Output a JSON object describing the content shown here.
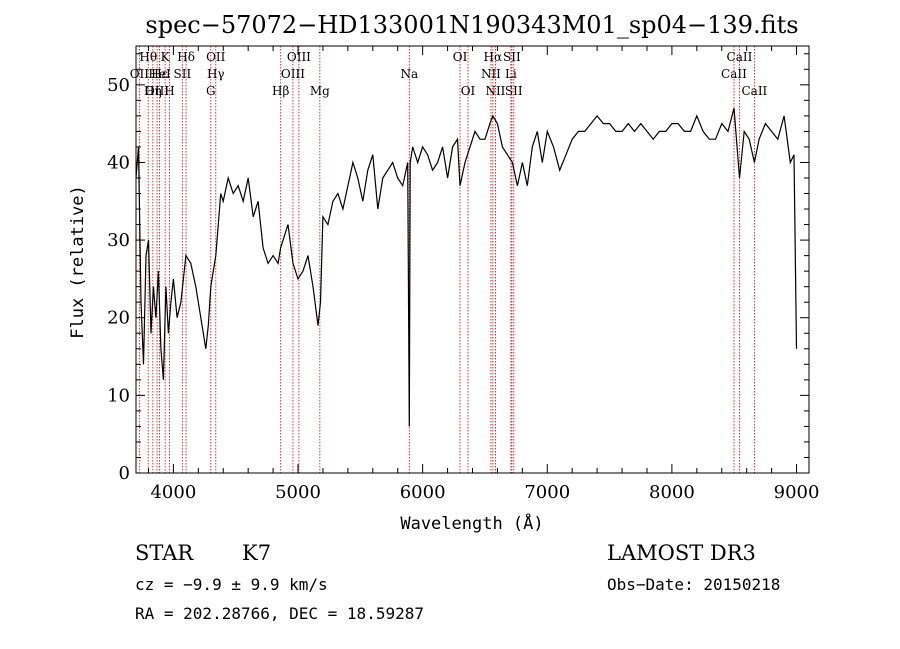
{
  "chart_data": {
    "type": "line",
    "title": "spec−57072−HD133001N190343M01_sp04−139.fits",
    "xlabel": "Wavelength (Å)",
    "ylabel": "Flux (relative)",
    "xlim": [
      3700,
      9100
    ],
    "ylim": [
      0,
      55
    ],
    "x_ticks": [
      4000,
      5000,
      6000,
      7000,
      8000,
      9000
    ],
    "y_ticks": [
      0,
      10,
      20,
      30,
      40,
      50
    ],
    "series": [
      {
        "name": "spectrum",
        "x": [
          3700,
          3720,
          3740,
          3760,
          3780,
          3800,
          3820,
          3840,
          3860,
          3880,
          3900,
          3920,
          3940,
          3960,
          3980,
          4000,
          4030,
          4060,
          4100,
          4140,
          4180,
          4220,
          4260,
          4280,
          4300,
          4320,
          4340,
          4360,
          4380,
          4400,
          4440,
          4480,
          4520,
          4560,
          4600,
          4640,
          4680,
          4720,
          4760,
          4800,
          4840,
          4860,
          4880,
          4920,
          4960,
          5000,
          5040,
          5080,
          5120,
          5160,
          5180,
          5200,
          5240,
          5280,
          5320,
          5360,
          5400,
          5440,
          5480,
          5520,
          5560,
          5600,
          5640,
          5680,
          5720,
          5760,
          5800,
          5840,
          5880,
          5893,
          5900,
          5920,
          5960,
          6000,
          6040,
          6080,
          6120,
          6160,
          6200,
          6240,
          6280,
          6300,
          6340,
          6380,
          6420,
          6460,
          6500,
          6540,
          6563,
          6600,
          6640,
          6680,
          6720,
          6760,
          6800,
          6840,
          6880,
          6920,
          6960,
          7000,
          7050,
          7100,
          7150,
          7200,
          7250,
          7300,
          7350,
          7400,
          7450,
          7500,
          7550,
          7600,
          7650,
          7700,
          7750,
          7800,
          7850,
          7900,
          7950,
          8000,
          8050,
          8100,
          8150,
          8200,
          8250,
          8300,
          8350,
          8400,
          8450,
          8498,
          8542,
          8580,
          8620,
          8662,
          8700,
          8750,
          8800,
          8850,
          8900,
          8950,
          8980,
          9000
        ],
        "y": [
          38,
          42,
          22,
          14,
          28,
          30,
          18,
          24,
          20,
          26,
          16,
          12,
          24,
          18,
          22,
          25,
          20,
          22,
          28,
          27,
          24,
          20,
          16,
          19,
          24,
          26,
          28,
          32,
          36,
          35,
          38,
          36,
          37,
          35,
          38,
          33,
          35,
          29,
          27,
          28,
          27,
          29,
          30,
          32,
          27,
          25,
          26,
          28,
          24,
          19,
          22,
          33,
          32,
          35,
          36,
          34,
          37,
          40,
          38,
          35,
          39,
          41,
          34,
          38,
          39,
          40,
          38,
          37,
          40,
          6,
          40,
          42,
          40,
          42,
          41,
          39,
          40,
          42,
          38,
          42,
          43,
          37,
          40,
          42,
          44,
          43,
          43,
          45,
          46,
          45,
          42,
          41,
          40,
          37,
          40,
          37,
          42,
          44,
          40,
          44,
          42,
          39,
          41,
          43,
          44,
          44,
          45,
          46,
          45,
          45,
          44,
          44,
          45,
          44,
          45,
          44,
          43,
          44,
          44,
          45,
          45,
          44,
          44,
          46,
          44,
          43,
          43,
          45,
          44,
          47,
          38,
          44,
          43,
          40,
          43,
          45,
          44,
          43,
          46,
          40,
          41,
          16
        ]
      }
    ],
    "spectral_lines": [
      {
        "label": "Hθ",
        "wavelength": 3798,
        "row": 1
      },
      {
        "label": "OII",
        "wavelength": 3727,
        "row": 2
      },
      {
        "label": "OIII",
        "wavelength": 3869,
        "row": 3
      },
      {
        "label": "Hε",
        "wavelength": 3889,
        "row": 2
      },
      {
        "label": "K",
        "wavelength": 3934,
        "row": 1
      },
      {
        "label": "HeI",
        "wavelength": 3889,
        "row": 2
      },
      {
        "label": "Hη",
        "wavelength": 3835,
        "row": 3
      },
      {
        "label": "H",
        "wavelength": 3969,
        "row": 3
      },
      {
        "label": "Hδ",
        "wavelength": 4102,
        "row": 1
      },
      {
        "label": "SII",
        "wavelength": 4072,
        "row": 2
      },
      {
        "label": "OII",
        "wavelength": 4340,
        "row": 1
      },
      {
        "label": "Hγ",
        "wavelength": 4340,
        "row": 2
      },
      {
        "label": "G",
        "wavelength": 4300,
        "row": 3
      },
      {
        "label": "OIII",
        "wavelength": 5007,
        "row": 1
      },
      {
        "label": "OIII",
        "wavelength": 4959,
        "row": 2
      },
      {
        "label": "Hβ",
        "wavelength": 4861,
        "row": 3
      },
      {
        "label": "Mg",
        "wavelength": 5175,
        "row": 3
      },
      {
        "label": "Na",
        "wavelength": 5893,
        "row": 2
      },
      {
        "label": "OI",
        "wavelength": 6300,
        "row": 1
      },
      {
        "label": "OI",
        "wavelength": 6364,
        "row": 3
      },
      {
        "label": "Hα",
        "wavelength": 6563,
        "row": 1
      },
      {
        "label": "SII",
        "wavelength": 6716,
        "row": 1
      },
      {
        "label": "NII",
        "wavelength": 6548,
        "row": 2
      },
      {
        "label": "Li",
        "wavelength": 6708,
        "row": 2
      },
      {
        "label": "NII",
        "wavelength": 6584,
        "row": 3
      },
      {
        "label": "SII",
        "wavelength": 6731,
        "row": 3
      },
      {
        "label": "CaII",
        "wavelength": 8542,
        "row": 1
      },
      {
        "label": "CaII",
        "wavelength": 8498,
        "row": 2
      },
      {
        "label": "CaII",
        "wavelength": 8662,
        "row": 3
      }
    ],
    "line_markers": [
      3727,
      3798,
      3835,
      3869,
      3889,
      3934,
      3969,
      4072,
      4102,
      4300,
      4340,
      4861,
      4959,
      5007,
      5175,
      5893,
      6300,
      6364,
      6548,
      6563,
      6584,
      6708,
      6716,
      6731,
      8498,
      8542,
      8662
    ],
    "colors": {
      "spectrum": "#000000",
      "markers": "#cc2222",
      "axes": "#000000"
    }
  },
  "footer": {
    "object_class": "STAR",
    "subclass": "K7",
    "survey": "LAMOST DR3",
    "cz": "cz = −9.9 ± 9.9 km/s",
    "obs_date": "Obs−Date: 20150218",
    "coords": "RA = 202.28766, DEC =  18.59287"
  }
}
